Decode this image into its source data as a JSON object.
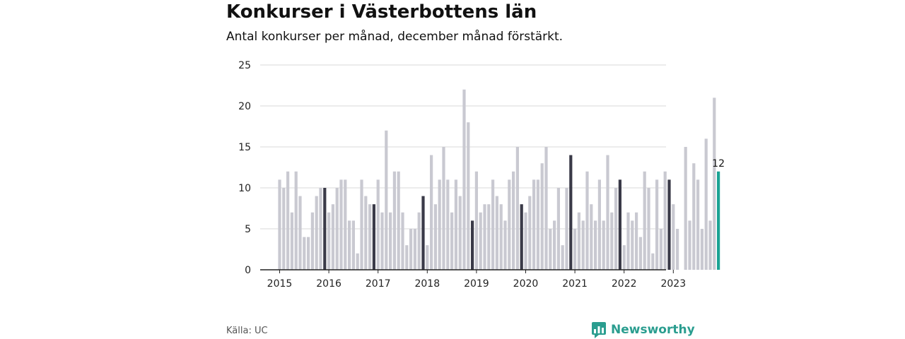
{
  "header": {
    "title": "Konkurser i Västerbottens län",
    "subtitle": "Antal konkurser per månad, december månad förstärkt."
  },
  "footer": {
    "source": "Källa: UC",
    "brand": "Newsworthy"
  },
  "colors": {
    "normal": "#c9c9d1",
    "december": "#3a3a48",
    "latest": "#1aa394",
    "grid": "#d9d9d9",
    "axis": "#222222",
    "brand": "#2a9d8f"
  },
  "icons": {
    "brand_logo": "bar-chart-speech-bubble-icon"
  },
  "chart_data": {
    "type": "bar",
    "start": "2015-01",
    "x_tick_labels": [
      "2015",
      "2016",
      "2017",
      "2018",
      "2019",
      "2020",
      "2021",
      "2022",
      "2023"
    ],
    "y_ticks": [
      0,
      5,
      10,
      15,
      20,
      25
    ],
    "ylim": [
      0,
      25
    ],
    "highlight": "december",
    "grid": true,
    "values": [
      11,
      10,
      12,
      7,
      12,
      9,
      4,
      4,
      7,
      9,
      10,
      10,
      7,
      8,
      10,
      11,
      11,
      6,
      6,
      2,
      11,
      9,
      8,
      8,
      11,
      7,
      17,
      7,
      12,
      12,
      7,
      3,
      5,
      5,
      7,
      9,
      3,
      14,
      8,
      11,
      15,
      11,
      7,
      11,
      9,
      22,
      18,
      6,
      12,
      7,
      8,
      8,
      11,
      9,
      8,
      6,
      11,
      12,
      15,
      8,
      7,
      9,
      11,
      11,
      13,
      15,
      5,
      6,
      10,
      3,
      10,
      14,
      5,
      7,
      6,
      12,
      8,
      6,
      11,
      6,
      14,
      7,
      10,
      11,
      3,
      7,
      6,
      7,
      4,
      12,
      10,
      2,
      11,
      5,
      12,
      11,
      8,
      5,
      0,
      15,
      6,
      13,
      11,
      5,
      16,
      6,
      21,
      12
    ],
    "latest_label": "12"
  }
}
